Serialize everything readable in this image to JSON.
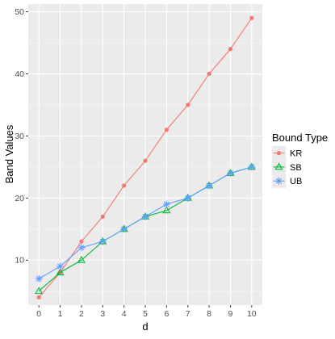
{
  "chart_data": {
    "type": "line",
    "xlabel": "d",
    "ylabel": "Band Values",
    "x": [
      0,
      1,
      2,
      3,
      4,
      5,
      6,
      7,
      8,
      9,
      10
    ],
    "x_ticks": [
      "0",
      "1",
      "2",
      "3",
      "4",
      "5",
      "6",
      "7",
      "8",
      "9",
      "10"
    ],
    "y_ticks": [
      "10",
      "20",
      "30",
      "40",
      "50"
    ],
    "xlim": [
      -0.5,
      10.5
    ],
    "ylim": [
      2.75,
      51.25
    ],
    "grid": true,
    "legend": {
      "title": "Bound Type",
      "position": "right"
    },
    "series": [
      {
        "name": "KR",
        "color": "#F8766D",
        "marker": "circle",
        "values": [
          4,
          8,
          13,
          17,
          22,
          26,
          31,
          35,
          40,
          44,
          49
        ]
      },
      {
        "name": "SB",
        "color": "#00BA38",
        "marker": "triangle",
        "values": [
          5,
          8,
          10,
          13,
          15,
          17,
          18,
          20,
          22,
          24,
          25
        ]
      },
      {
        "name": "UB",
        "color": "#619CFF",
        "marker": "asterisk",
        "values": [
          7,
          9,
          12,
          13,
          15,
          17,
          19,
          20,
          22,
          24,
          25
        ]
      }
    ]
  }
}
